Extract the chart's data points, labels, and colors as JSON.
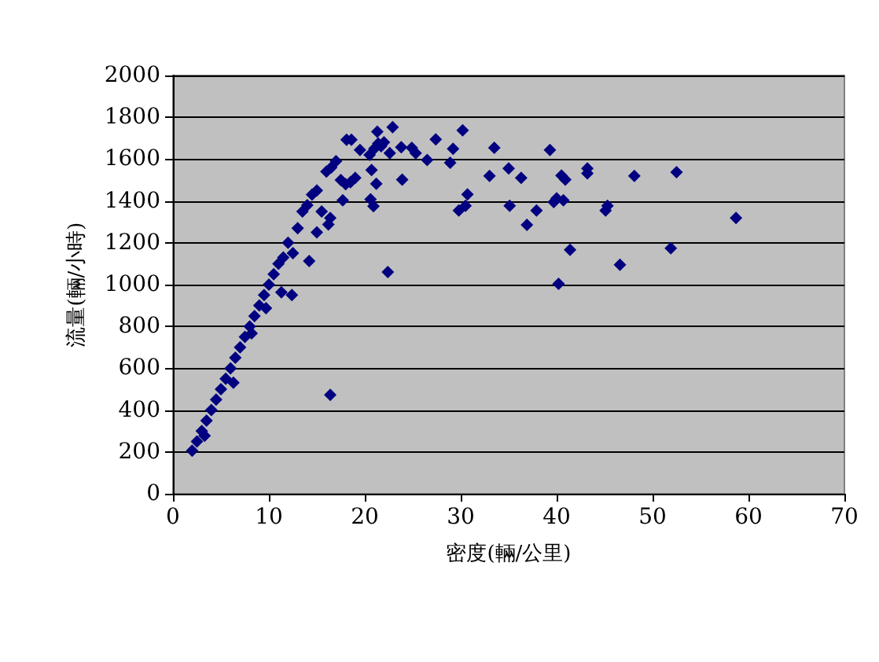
{
  "chart_data": {
    "type": "scatter",
    "xlabel": "密度(輛/公里)",
    "ylabel": "流量(輛/小時)",
    "marker": "diamond",
    "grid": "y",
    "xlim": [
      0,
      70
    ],
    "xticks": [
      0,
      10,
      20,
      30,
      40,
      50,
      60,
      70
    ],
    "ylim": [
      0,
      2000
    ],
    "yticks": [
      0,
      200,
      400,
      600,
      800,
      1000,
      1200,
      1400,
      1600,
      1800,
      2000
    ],
    "series": [
      {
        "color": "#000080",
        "x": [
          2.0,
          2.5,
          3.0,
          3.3,
          3.5,
          4.0,
          4.5,
          5.0,
          5.5,
          6.0,
          6.3,
          6.5,
          7.0,
          7.5,
          8.0,
          8.2,
          8.5,
          9.0,
          9.5,
          9.7,
          10.0,
          10.5,
          11.0,
          11.3,
          11.5,
          12.0,
          12.4,
          12.5,
          13.0,
          13.5,
          14.0,
          14.2,
          14.5,
          15.0,
          15.0,
          15.5,
          16.0,
          16.2,
          16.4,
          16.4,
          16.5,
          17.0,
          17.5,
          17.7,
          18.0,
          18.1,
          18.5,
          18.6,
          19.0,
          19.5,
          20.5,
          20.6,
          20.7,
          20.9,
          21.0,
          21.2,
          21.3,
          21.4,
          21.7,
          22.0,
          22.4,
          22.6,
          22.9,
          23.8,
          23.9,
          24.9,
          25.3,
          26.5,
          27.4,
          28.9,
          29.2,
          29.8,
          30.2,
          30.5,
          30.7,
          33.0,
          33.5,
          35.0,
          35.1,
          36.3,
          36.9,
          37.9,
          39.3,
          39.7,
          40.0,
          40.2,
          40.5,
          40.7,
          40.9,
          41.4,
          43.2,
          43.2,
          45.1,
          45.3,
          46.6,
          48.1,
          51.9,
          52.5,
          58.7
        ],
        "values": [
          206,
          250,
          300,
          277,
          350,
          400,
          450,
          500,
          550,
          600,
          531,
          650,
          700,
          750,
          800,
          767,
          850,
          900,
          950,
          887,
          1000,
          1050,
          1100,
          963,
          1130,
          1200,
          950,
          1150,
          1270,
          1350,
          1380,
          1113,
          1430,
          1450,
          1250,
          1350,
          1540,
          1288,
          1319,
          473,
          1560,
          1590,
          1500,
          1403,
          1480,
          1693,
          1490,
          1693,
          1510,
          1644,
          1620,
          1408,
          1548,
          1375,
          1650,
          1482,
          1731,
          1675,
          1662,
          1680,
          1060,
          1629,
          1753,
          1657,
          1502,
          1654,
          1629,
          1596,
          1695,
          1583,
          1649,
          1354,
          1738,
          1377,
          1431,
          1520,
          1654,
          1555,
          1377,
          1510,
          1286,
          1354,
          1644,
          1395,
          1413,
          1004,
          1522,
          1403,
          1502,
          1166,
          1555,
          1532,
          1354,
          1377,
          1095,
          1520,
          1174,
          1538,
          1319
        ]
      }
    ]
  }
}
